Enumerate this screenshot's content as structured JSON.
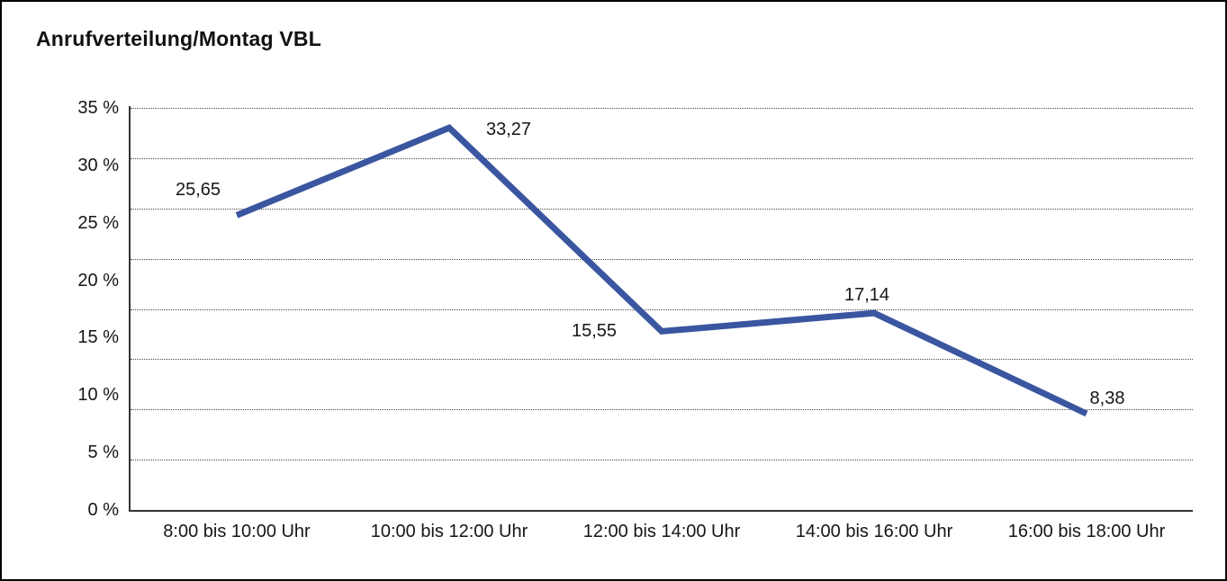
{
  "title": "Anrufverteilung/Montag VBL",
  "chart_data": {
    "type": "line",
    "title": "Anrufverteilung/Montag VBL",
    "categories": [
      "8:00 bis 10:00 Uhr",
      "10:00 bis 12:00 Uhr",
      "12:00 bis 14:00 Uhr",
      "14:00 bis 16:00 Uhr",
      "16:00 bis 18:00 Uhr"
    ],
    "values": [
      25.65,
      33.27,
      15.55,
      17.14,
      8.38
    ],
    "value_labels": [
      "25,65",
      "33,27",
      "15,55",
      "17,14",
      "8,38"
    ],
    "xlabel": "",
    "ylabel": "",
    "ylim": [
      0,
      35
    ],
    "ytick_step": 5,
    "ytick_labels": [
      "0 %",
      "5 %",
      "10 %",
      "15 %",
      "20 %",
      "25 %",
      "30 %",
      "35 %"
    ],
    "gridline_count": 8,
    "grid": "horizontal-dotted",
    "legend": "none",
    "line_color": "#3a56a0",
    "axis_color": "#333333",
    "text_color": "#161616",
    "background_color": "#ffffff"
  }
}
